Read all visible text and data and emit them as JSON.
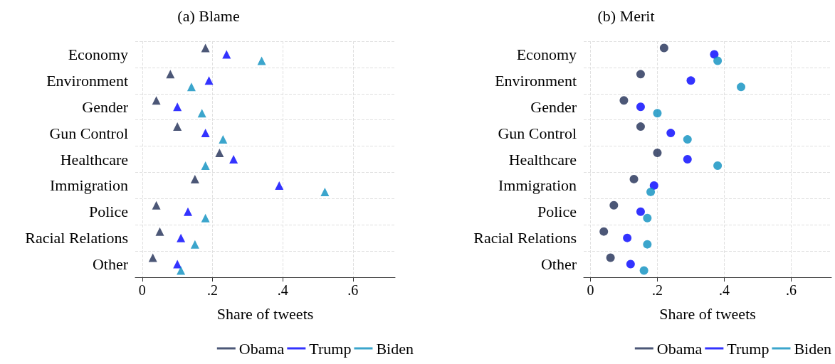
{
  "chart_data": [
    {
      "type": "scatter",
      "title": "(a) Blame",
      "xlabel": "Share of tweets",
      "orientation": "horizontal",
      "marker": "triangle",
      "grid": true,
      "legend": "bottom",
      "categories": [
        "Economy",
        "Environment",
        "Gender",
        "Gun Control",
        "Healthcare",
        "Immigration",
        "Police",
        "Racial Relations",
        "Other"
      ],
      "xlim": [
        -0.02,
        0.72
      ],
      "xticks": [
        0,
        {
          "value": 0.2,
          "label": ".2"
        },
        {
          "value": 0.4,
          "label": ".4"
        },
        {
          "value": 0.6,
          "label": ".6"
        }
      ],
      "series": [
        {
          "name": "Obama",
          "color": "#1f2d55",
          "values": [
            0.18,
            0.08,
            0.04,
            0.1,
            0.22,
            0.15,
            0.04,
            0.05,
            0.03
          ]
        },
        {
          "name": "Trump",
          "color": "#0000ff",
          "values": [
            0.24,
            0.19,
            0.1,
            0.18,
            0.26,
            0.39,
            0.13,
            0.11,
            0.1
          ]
        },
        {
          "name": "Biden",
          "color": "#0a8fbf",
          "values": [
            0.34,
            0.14,
            0.17,
            0.23,
            0.18,
            0.52,
            0.18,
            0.15,
            0.11
          ]
        }
      ]
    },
    {
      "type": "scatter",
      "title": "(b) Merit",
      "xlabel": "Share of tweets",
      "orientation": "horizontal",
      "marker": "circle",
      "grid": true,
      "legend": "bottom",
      "categories": [
        "Economy",
        "Environment",
        "Gender",
        "Gun Control",
        "Healthcare",
        "Immigration",
        "Police",
        "Racial Relations",
        "Other"
      ],
      "xlim": [
        -0.02,
        0.72
      ],
      "xticks": [
        0,
        {
          "value": 0.2,
          "label": ".2"
        },
        {
          "value": 0.4,
          "label": ".4"
        },
        {
          "value": 0.6,
          "label": ".6"
        }
      ],
      "series": [
        {
          "name": "Obama",
          "color": "#1f2d55",
          "values": [
            0.22,
            0.15,
            0.1,
            0.15,
            0.2,
            0.13,
            0.07,
            0.04,
            0.06
          ]
        },
        {
          "name": "Trump",
          "color": "#0000ff",
          "values": [
            0.37,
            0.3,
            0.15,
            0.24,
            0.29,
            0.19,
            0.15,
            0.11,
            0.12
          ]
        },
        {
          "name": "Biden",
          "color": "#0a8fbf",
          "values": [
            0.38,
            0.45,
            0.2,
            0.29,
            0.38,
            0.18,
            0.17,
            0.17,
            0.16
          ]
        }
      ]
    }
  ]
}
